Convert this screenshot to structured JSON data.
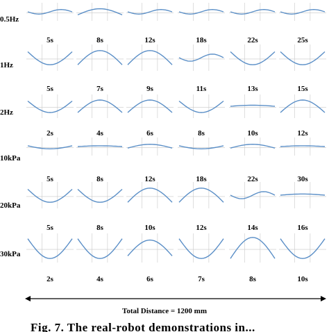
{
  "rows": [
    {
      "label": "0.5Hz",
      "times": [
        "5s",
        "8s",
        "12s",
        "18s",
        "22s",
        "25s"
      ],
      "shapes": [
        "flatwave",
        "bump",
        "flatwave",
        "flatwave",
        "flatwave",
        "flatwave"
      ]
    },
    {
      "label": "1Hz",
      "times": [
        "5s",
        "7s",
        "9s",
        "11s",
        "13s",
        "15s"
      ],
      "shapes": [
        "valley",
        "hill",
        "hill",
        "flatwave",
        "valley",
        "valley"
      ]
    },
    {
      "label": "2Hz",
      "times": [
        "2s",
        "4s",
        "6s",
        "8s",
        "10s",
        "12s"
      ],
      "shapes": [
        "valley",
        "hill",
        "hill",
        "valley",
        "flat",
        "hill"
      ]
    },
    {
      "label": "10kPa",
      "times": [
        "5s",
        "8s",
        "12s",
        "18s",
        "22s",
        "30s"
      ],
      "shapes": [
        "shallowvalley",
        "flat",
        "smallhill",
        "shallowvalley",
        "smallhill",
        "flat"
      ]
    },
    {
      "label": "20kPa",
      "times": [
        "5s",
        "8s",
        "10s",
        "12s",
        "14s",
        "16s"
      ],
      "shapes": [
        "valley",
        "valley",
        "hill",
        "hill",
        "flatwave",
        "flat"
      ]
    },
    {
      "label": "30kPa",
      "times": [
        "2s",
        "4s",
        "6s",
        "7s",
        "8s",
        "10s"
      ],
      "shapes": [
        "deepvalley",
        "deepvalley",
        "hill",
        "deepvalley",
        "peak",
        "deepvalley"
      ]
    }
  ],
  "axis_caption": "Total Distance = 1200 mm",
  "figure_caption": "Fig. 7. The real-robot demonstrations in...",
  "colors": {
    "curve": "#5b8fc7",
    "grid": "#c8c8c8"
  }
}
